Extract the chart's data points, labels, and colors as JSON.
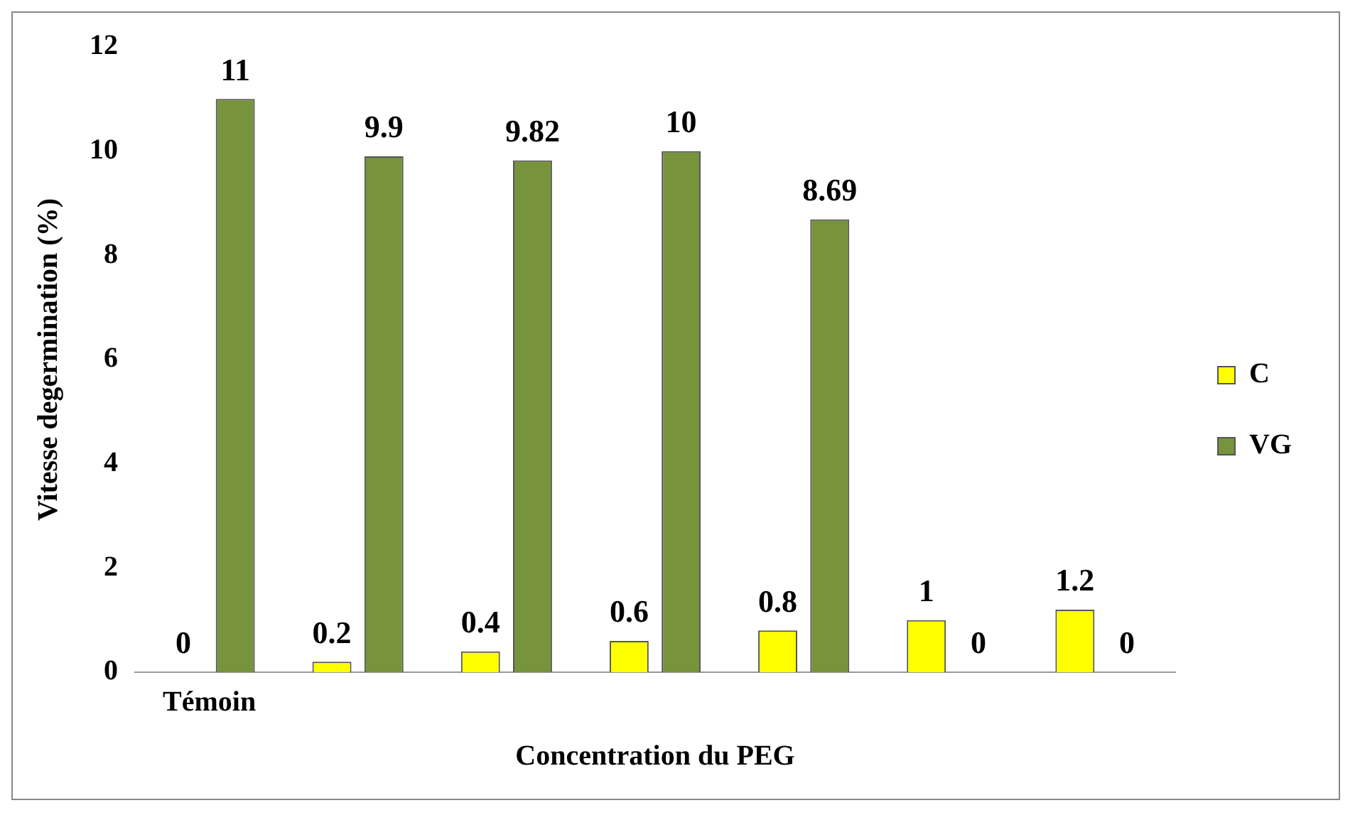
{
  "chart_data": {
    "type": "bar",
    "xlabel": "Concentration du PEG",
    "ylabel": "Vitesse degermination (%)",
    "categories": [
      "Témoin",
      null,
      null,
      null,
      null,
      null,
      null
    ],
    "series": [
      {
        "name": "C",
        "color": "#ffff00",
        "values": [
          0,
          0.2,
          0.4,
          0.6,
          0.8,
          1,
          1.2
        ]
      },
      {
        "name": "VG",
        "color": "#77933c",
        "values": [
          11,
          9.9,
          9.82,
          10,
          8.69,
          0,
          0
        ]
      }
    ],
    "ylim": [
      0,
      12
    ],
    "yticks": [
      0,
      2,
      4,
      6,
      8,
      10,
      12
    ],
    "grid": false,
    "legend": "right",
    "data_labels": true
  }
}
